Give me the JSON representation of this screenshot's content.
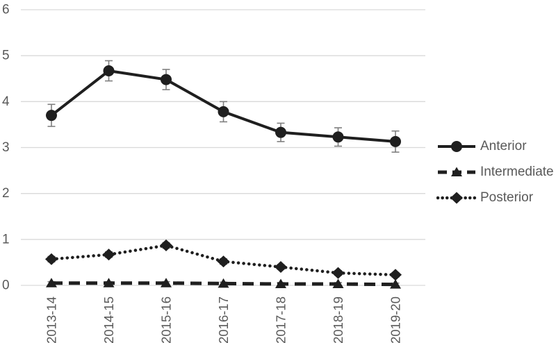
{
  "page": {
    "background": "#ffffff"
  },
  "colors": {
    "series": "#1f1f1f",
    "gridline": "#d9d9d9",
    "tick_label": "#595959",
    "error_bar": "#7f7f7f",
    "background": "#ffffff"
  },
  "chart_data": {
    "type": "line",
    "title": "",
    "xlabel": "",
    "ylabel": "",
    "categories": [
      "2013-14",
      "2014-15",
      "2015-16",
      "2016-17",
      "2017-18",
      "2018-19",
      "2019-20"
    ],
    "series": [
      {
        "name": "Anterior",
        "line_style": "solid",
        "marker": "circle",
        "values": [
          3.7,
          4.67,
          4.48,
          3.78,
          3.33,
          3.23,
          3.13
        ],
        "error_bars": [
          0.24,
          0.22,
          0.22,
          0.22,
          0.2,
          0.2,
          0.23
        ]
      },
      {
        "name": "Intermediate",
        "line_style": "dashed",
        "marker": "triangle",
        "values": [
          0.05,
          0.05,
          0.05,
          0.04,
          0.03,
          0.03,
          0.02
        ],
        "error_bars": [
          0.03,
          0.03,
          0.03,
          0.03,
          0.03,
          0.03,
          0.03
        ]
      },
      {
        "name": "Posterior",
        "line_style": "dotted",
        "marker": "diamond",
        "values": [
          0.57,
          0.67,
          0.87,
          0.52,
          0.4,
          0.27,
          0.23
        ],
        "error_bars": [
          0.06,
          0.06,
          0.06,
          0.06,
          0.05,
          0.05,
          0.05
        ]
      }
    ],
    "ylim": [
      0,
      6
    ],
    "yticks": [
      0,
      1,
      2,
      3,
      4,
      5,
      6
    ],
    "grid": true,
    "legend_position": "right"
  }
}
